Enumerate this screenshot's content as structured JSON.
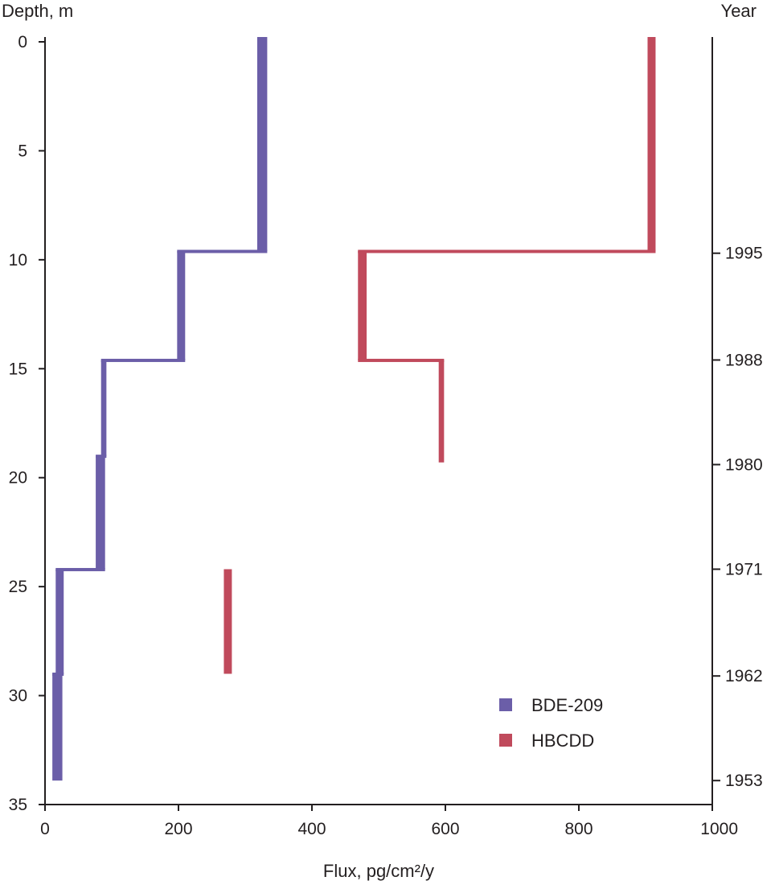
{
  "chart_data": {
    "type": "line",
    "title": "",
    "xlabel": "Flux, pg/cm²/y",
    "ylabel": "Depth, m",
    "y2label": "Year",
    "xlim": [
      0,
      1000
    ],
    "ylim": [
      35,
      0
    ],
    "x_ticks": [
      "0",
      "200",
      "400",
      "600",
      "800",
      "1000"
    ],
    "y_ticks": [
      "0",
      "5",
      "10",
      "15",
      "20",
      "25",
      "30",
      "35"
    ],
    "year_ticks": [
      {
        "depth": 9.7,
        "label": "1995"
      },
      {
        "depth": 14.6,
        "label": "1988"
      },
      {
        "depth": 19.4,
        "label": "1980"
      },
      {
        "depth": 24.2,
        "label": "1971"
      },
      {
        "depth": 29.1,
        "label": "1962"
      },
      {
        "depth": 33.9,
        "label": "1953"
      }
    ],
    "legend_position": "bottom-right",
    "series": [
      {
        "name": "BDE-209",
        "color": "#6b5ea8",
        "segments": [
          {
            "depth_top": 0,
            "depth_bottom": 9.6,
            "flux_min": 318,
            "flux_max": 333
          },
          {
            "depth_top": 9.6,
            "depth_bottom": 14.6,
            "flux_min": 198,
            "flux_max": 210
          },
          {
            "depth_top": 14.6,
            "depth_bottom": 19.0,
            "flux_min": 84,
            "flux_max": 92
          },
          {
            "depth_top": 19.0,
            "depth_bottom": 24.2,
            "flux_min": 76,
            "flux_max": 90
          },
          {
            "depth_top": 24.2,
            "depth_bottom": 29.0,
            "flux_min": 16,
            "flux_max": 28
          },
          {
            "depth_top": 29.0,
            "depth_bottom": 33.9,
            "flux_min": 11,
            "flux_max": 26
          }
        ]
      },
      {
        "name": "HBCDD",
        "color": "#c04a5c",
        "segments": [
          {
            "depth_top": 0,
            "depth_bottom": 9.6,
            "flux_min": 903,
            "flux_max": 915
          },
          {
            "depth_top": 9.6,
            "depth_bottom": 14.6,
            "flux_min": 469,
            "flux_max": 482
          },
          {
            "depth_top": 14.6,
            "depth_bottom": 19.3,
            "flux_min": 590,
            "flux_max": 598
          },
          {
            "depth_top": 24.2,
            "depth_bottom": 29.0,
            "flux_min": 268,
            "flux_max": 280
          }
        ]
      }
    ]
  }
}
